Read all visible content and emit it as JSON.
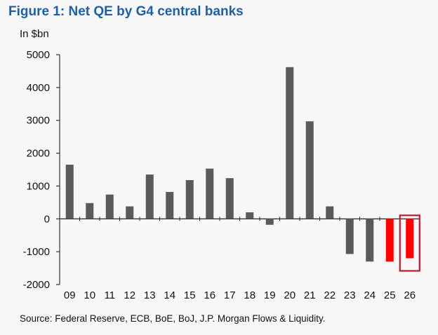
{
  "figure": {
    "title": "Figure 1: Net QE by G4 central banks",
    "unit_label": "In $bn",
    "source": "Source: Federal Reserve, ECB, BoE, BoJ, J.P. Morgan Flows & Liquidity."
  },
  "colors": {
    "bar": "#5a5a5a",
    "highlight_bar": "#ff0000",
    "highlight_box": "#c0182e",
    "title": "#1f5fa8"
  },
  "chart_data": {
    "type": "bar",
    "title": "Figure 1: Net QE by G4 central banks",
    "ylabel": "In $bn",
    "xlabel": "",
    "categories": [
      "09",
      "10",
      "11",
      "12",
      "13",
      "14",
      "15",
      "16",
      "17",
      "18",
      "19",
      "20",
      "21",
      "22",
      "23",
      "24",
      "25",
      "26"
    ],
    "values": [
      1650,
      480,
      740,
      380,
      1350,
      820,
      1180,
      1530,
      1240,
      200,
      -180,
      4620,
      2970,
      380,
      -1070,
      -1300,
      -1300,
      -1200
    ],
    "highlighted": [
      "25",
      "26"
    ],
    "boxed": [
      "26"
    ],
    "ylim": [
      -2000,
      5000
    ],
    "yticks": [
      -2000,
      -1000,
      0,
      1000,
      2000,
      3000,
      4000,
      5000
    ],
    "grid": false,
    "legend": "none"
  }
}
